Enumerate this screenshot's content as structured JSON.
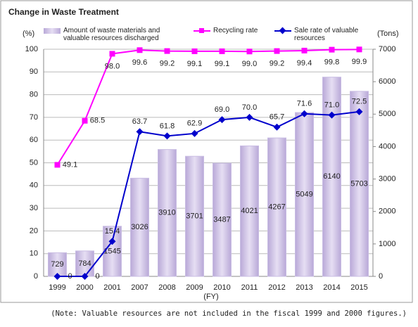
{
  "chart_data": {
    "type": "bar-line",
    "title": "Change in Waste Treatment",
    "y_label": "(%)",
    "y2_label": "(Tons)",
    "x_label": "(FY)",
    "note": "(Note: Valuable resources are not included in the fiscal 1999 and 2000 figures.)",
    "categories": [
      "1999",
      "2000",
      "2001",
      "2007",
      "2008",
      "2009",
      "2010",
      "2011",
      "2012",
      "2013",
      "2014",
      "2015"
    ],
    "ylim": [
      0,
      100
    ],
    "yticks": [
      0,
      10,
      20,
      30,
      40,
      50,
      60,
      70,
      80,
      90,
      100
    ],
    "y2lim": [
      0,
      7000
    ],
    "y2ticks": [
      0,
      1000,
      2000,
      3000,
      4000,
      5000,
      6000,
      7000
    ],
    "grid": true,
    "series": [
      {
        "name": "Amount of waste materials and valuable resources discharged",
        "type": "bar",
        "axis": "y2",
        "color": "#c9bde3",
        "values": [
          729,
          784,
          1545,
          3026,
          3910,
          3701,
          3487,
          4021,
          4267,
          5049,
          6140,
          5703
        ]
      },
      {
        "name": "Recycling rate",
        "type": "line",
        "marker": "square",
        "color": "#ff00ff",
        "values": [
          49.1,
          68.5,
          98.0,
          99.6,
          99.2,
          99.1,
          99.1,
          99.0,
          99.2,
          99.4,
          99.8,
          99.9
        ],
        "value_labels": [
          "49.1",
          "68.5",
          "98.0",
          "99.6",
          "99.2",
          "99.1",
          "99.1",
          "99.0",
          "99.2",
          "99.4",
          "99.8",
          "99.9"
        ]
      },
      {
        "name": "Sale rate of valuable resources",
        "type": "line",
        "marker": "diamond",
        "color": "#0000cc",
        "values": [
          0,
          0,
          15.4,
          63.7,
          61.8,
          62.9,
          69.0,
          70.0,
          65.7,
          71.6,
          71.0,
          72.5
        ],
        "value_labels": [
          "0",
          "0",
          "15.4",
          "63.7",
          "61.8",
          "62.9",
          "69.0",
          "70.0",
          "65.7",
          "71.6",
          "71.0",
          "72.5"
        ]
      }
    ]
  }
}
